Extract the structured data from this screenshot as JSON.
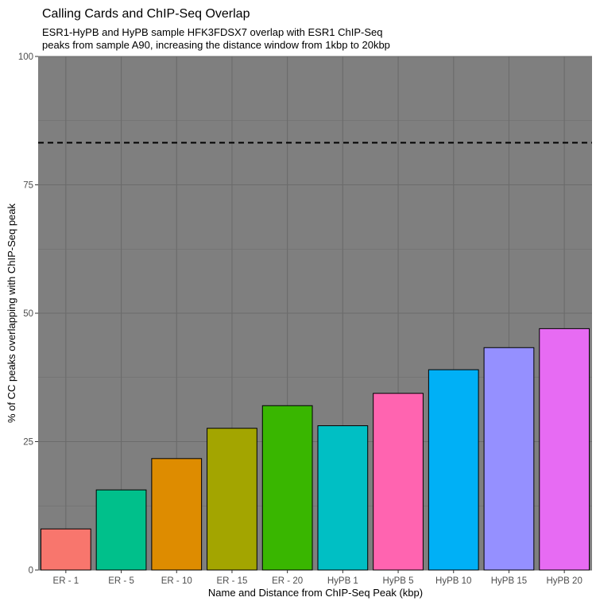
{
  "chart_data": {
    "type": "bar",
    "title": "Calling Cards and ChIP-Seq Overlap",
    "subtitle": [
      "ESR1-HyPB and HyPB sample HFK3FDSX7 overlap with ESR1 ChIP-Seq",
      "peaks from sample A90, increasing the distance window from 1kbp to 20kbp"
    ],
    "xlabel": "Name and Distance from ChIP-Seq Peak (kbp)",
    "ylabel": "% of CC peaks overlapping with ChIP-Seq peak",
    "ylim": [
      0,
      100
    ],
    "yticks": [
      0,
      25,
      50,
      75,
      100
    ],
    "categories": [
      "ER - 1",
      "ER - 5",
      "ER - 10",
      "ER - 15",
      "ER - 20",
      "HyPB 1",
      "HyPB 5",
      "HyPB 10",
      "HyPB 15",
      "HyPB 20"
    ],
    "values": [
      8.0,
      15.6,
      21.7,
      27.6,
      32.0,
      28.1,
      34.4,
      39.0,
      43.3,
      47.0
    ],
    "colors": [
      "#F8766D",
      "#00C08B",
      "#DE8C00",
      "#A3A500",
      "#39B600",
      "#00BFC4",
      "#FF64B0",
      "#00B0F6",
      "#9590FF",
      "#E76BF3"
    ],
    "reference_line": {
      "y": 83.2,
      "style": "dashed"
    },
    "grid": true,
    "panel_background": "#7f7f7f",
    "grid_color": "#6b6b6b"
  }
}
